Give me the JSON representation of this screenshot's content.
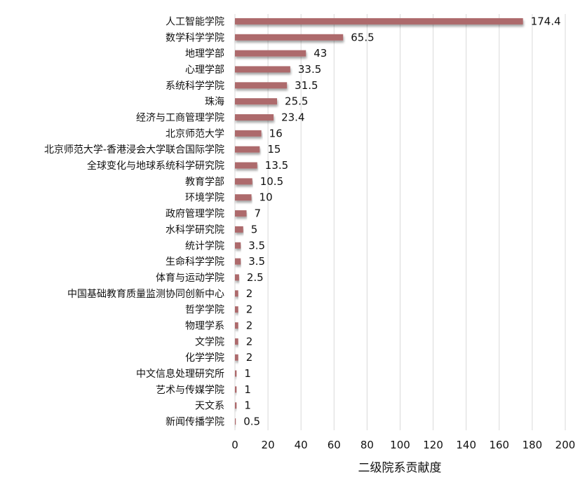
{
  "chart_data": {
    "type": "bar",
    "orientation": "horizontal",
    "categories": [
      "人工智能学院",
      "数学科学学院",
      "地理学部",
      "心理学部",
      "系统科学学院",
      "珠海",
      "经济与工商管理学院",
      "北京师范大学",
      "北京师范大学-香港浸会大学联合国际学院",
      "全球变化与地球系统科学研究院",
      "教育学部",
      "环境学院",
      "政府管理学院",
      "水科学研究院",
      "统计学院",
      "生命科学学院",
      "体育与运动学院",
      "中国基础教育质量监测协同创新中心",
      "哲学学院",
      "物理学系",
      "文学院",
      "化学学院",
      "中文信息处理研究所",
      "艺术与传媒学院",
      "天文系",
      "新闻传播学院"
    ],
    "values": [
      174.4,
      65.5,
      43,
      33.5,
      31.5,
      25.5,
      23.4,
      16,
      15,
      13.5,
      10.5,
      10,
      7,
      5,
      3.5,
      3.5,
      2.5,
      2,
      2,
      2,
      2,
      2,
      1,
      1,
      1,
      0.5
    ],
    "value_labels": [
      "174.4",
      "65.5",
      "43",
      "33.5",
      "31.5",
      "25.5",
      "23.4",
      "16",
      "15",
      "13.5",
      "10.5",
      "10",
      "7",
      "5",
      "3.5",
      "3.5",
      "2.5",
      "2",
      "2",
      "2",
      "2",
      "2",
      "1",
      "1",
      "1",
      "0.5"
    ],
    "xlabel": "二级院系贡献度",
    "xlim": [
      0,
      200
    ],
    "xticks": [
      "0",
      "20",
      "40",
      "60",
      "80",
      "100",
      "120",
      "140",
      "160",
      "180",
      "200"
    ],
    "grid": true,
    "bar_color": "#ad6a6c",
    "grid_color": "#d9d9d9"
  }
}
